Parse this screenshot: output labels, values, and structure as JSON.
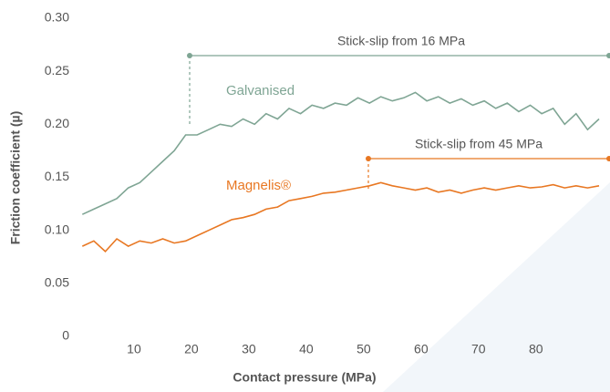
{
  "chart_data": {
    "type": "line",
    "x_label": "Contact pressure (MPa)",
    "y_label": "Friction coefficient (µ)",
    "x": [
      1,
      3,
      5,
      7,
      9,
      11,
      13,
      15,
      17,
      19,
      21,
      23,
      25,
      27,
      29,
      31,
      33,
      35,
      37,
      39,
      41,
      43,
      45,
      47,
      49,
      51,
      53,
      55,
      57,
      59,
      61,
      63,
      65,
      67,
      69,
      71,
      73,
      75,
      77,
      79,
      81,
      83,
      85,
      87,
      89,
      91
    ],
    "series": [
      {
        "name": "Galvanised",
        "color": "#7fa594",
        "values": [
          0.115,
          0.12,
          0.125,
          0.13,
          0.14,
          0.145,
          0.155,
          0.165,
          0.175,
          0.19,
          0.19,
          0.195,
          0.2,
          0.198,
          0.205,
          0.2,
          0.21,
          0.205,
          0.215,
          0.21,
          0.218,
          0.215,
          0.22,
          0.218,
          0.225,
          0.22,
          0.226,
          0.222,
          0.225,
          0.23,
          0.222,
          0.226,
          0.22,
          0.224,
          0.218,
          0.222,
          0.215,
          0.22,
          0.212,
          0.218,
          0.21,
          0.215,
          0.2,
          0.21,
          0.195,
          0.205
        ]
      },
      {
        "name": "Magnelis®",
        "color": "#e87722",
        "values": [
          0.085,
          0.09,
          0.08,
          0.092,
          0.085,
          0.09,
          0.088,
          0.092,
          0.088,
          0.09,
          0.095,
          0.1,
          0.105,
          0.11,
          0.112,
          0.115,
          0.12,
          0.122,
          0.128,
          0.13,
          0.132,
          0.135,
          0.136,
          0.138,
          0.14,
          0.142,
          0.145,
          0.142,
          0.14,
          0.138,
          0.14,
          0.136,
          0.138,
          0.135,
          0.138,
          0.14,
          0.138,
          0.14,
          0.142,
          0.14,
          0.141,
          0.143,
          0.14,
          0.142,
          0.14,
          0.142
        ]
      }
    ],
    "annotations": [
      "Stick-slip from 16 MPa",
      "Stick-slip from 45 MPa"
    ],
    "xlim": [
      0,
      92.9
    ],
    "ylim": [
      0,
      0.3
    ],
    "xticks": [
      10,
      20,
      30,
      40,
      50,
      60,
      70,
      80
    ],
    "yticks": [
      0,
      0.05,
      {
        "value": 0.1,
        "label": "0.10"
      },
      0.15,
      {
        "value": 0.2,
        "label": "0.20"
      },
      0.25,
      {
        "value": 0.3,
        "label": "0.30"
      }
    ],
    "grid": false
  }
}
